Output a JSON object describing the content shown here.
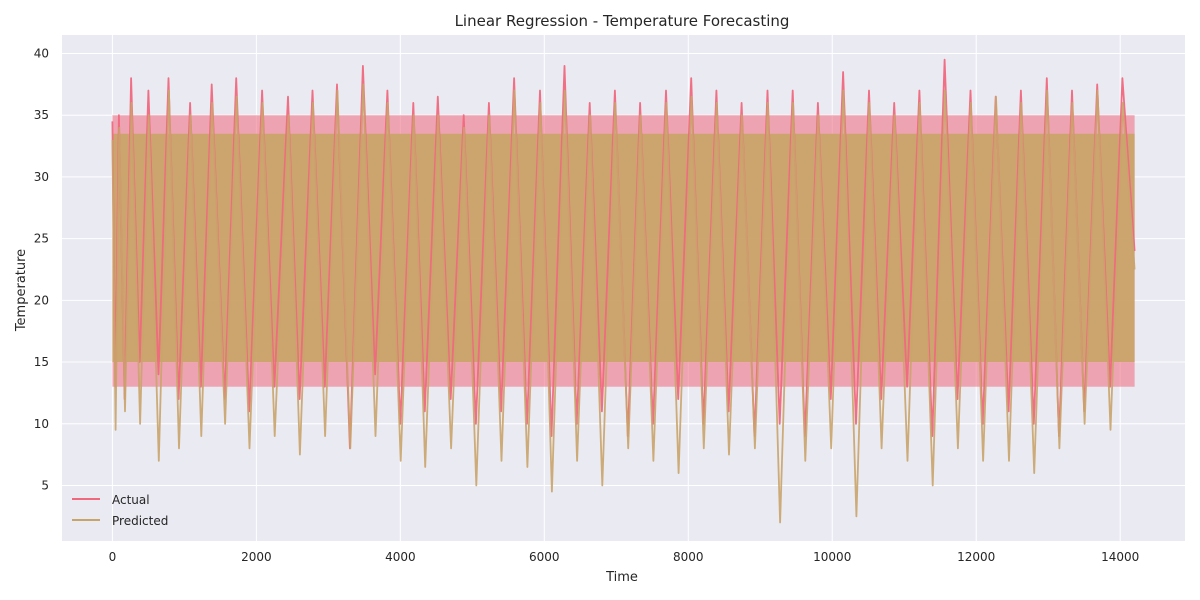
{
  "chart_data": {
    "type": "line",
    "title": "Linear Regression - Temperature Forecasting",
    "xlabel": "Time",
    "ylabel": "Temperature",
    "xlim": [
      -700,
      14900
    ],
    "ylim": [
      0.5,
      41.5
    ],
    "xticks": [
      0,
      2000,
      4000,
      6000,
      8000,
      10000,
      12000,
      14000
    ],
    "yticks": [
      5,
      10,
      15,
      20,
      25,
      30,
      35,
      40
    ],
    "grid": true,
    "legend_position": "lower-left",
    "series": [
      {
        "name": "Actual",
        "color": "#f0687e",
        "x": [
          0,
          40,
          90,
          170,
          260,
          380,
          500,
          640,
          780,
          920,
          1080,
          1230,
          1380,
          1560,
          1720,
          1900,
          2080,
          2250,
          2440,
          2600,
          2780,
          2950,
          3120,
          3300,
          3480,
          3650,
          3820,
          4000,
          4180,
          4340,
          4520,
          4700,
          4880,
          5050,
          5230,
          5400,
          5580,
          5760,
          5940,
          6100,
          6280,
          6450,
          6630,
          6800,
          6980,
          7160,
          7330,
          7510,
          7690,
          7860,
          8040,
          8210,
          8390,
          8560,
          8740,
          8920,
          9100,
          9270,
          9450,
          9620,
          9800,
          9980,
          10150,
          10330,
          10510,
          10680,
          10860,
          11040,
          11210,
          11390,
          11560,
          11740,
          11920,
          12090,
          12270,
          12450,
          12620,
          12800,
          12980,
          13150,
          13330,
          13500,
          13680,
          13860,
          14030,
          14200
        ],
        "y": [
          34.5,
          13,
          35,
          12,
          38,
          15,
          37,
          14,
          38,
          12,
          36,
          13,
          37.5,
          12,
          38,
          11,
          37,
          13,
          36.5,
          12,
          37,
          13,
          37.5,
          8,
          39,
          14,
          37,
          10,
          36,
          11,
          36.5,
          12,
          35,
          10,
          36,
          11,
          38,
          10,
          37,
          9,
          39,
          10,
          36,
          11,
          37,
          9,
          36,
          10,
          37,
          12,
          38,
          10,
          37,
          11,
          36,
          9,
          37,
          10,
          37,
          9,
          36,
          12,
          38.5,
          10,
          37,
          12,
          36,
          13,
          37,
          9,
          39.5,
          12,
          37,
          10,
          36.5,
          11,
          37,
          10,
          38,
          9,
          37,
          11,
          37.5,
          13,
          38,
          24
        ]
      },
      {
        "name": "Predicted",
        "color": "#c9a46a",
        "x": [
          0,
          45,
          95,
          175,
          265,
          385,
          505,
          645,
          785,
          925,
          1085,
          1235,
          1385,
          1565,
          1725,
          1905,
          2085,
          2255,
          2445,
          2605,
          2785,
          2955,
          3125,
          3305,
          3485,
          3655,
          3825,
          4005,
          4185,
          4345,
          4525,
          4705,
          4885,
          5055,
          5235,
          5405,
          5585,
          5765,
          5945,
          6105,
          6285,
          6455,
          6635,
          6805,
          6985,
          7165,
          7335,
          7515,
          7695,
          7865,
          8045,
          8215,
          8395,
          8565,
          8745,
          8925,
          9105,
          9275,
          9455,
          9625,
          9805,
          9985,
          10155,
          10335,
          10515,
          10685,
          10865,
          11045,
          11215,
          11395,
          11565,
          11745,
          11925,
          12095,
          12275,
          12455,
          12625,
          12805,
          12985,
          13155,
          13335,
          13505,
          13685,
          13865,
          14035,
          14200
        ],
        "y": [
          33,
          9.5,
          34,
          11,
          36,
          10,
          35,
          7,
          37,
          8,
          35,
          9,
          36,
          10,
          36.5,
          8,
          36,
          9,
          35,
          7.5,
          36,
          9,
          37,
          8,
          37.5,
          9,
          36,
          7,
          35,
          6.5,
          35,
          8,
          34,
          5,
          35,
          7,
          37,
          6.5,
          36,
          4.5,
          37,
          7,
          35,
          5,
          36,
          8,
          35,
          7,
          36,
          6,
          36.5,
          8,
          36,
          7.5,
          35,
          8,
          36,
          2,
          36,
          7,
          35,
          8,
          37,
          2.5,
          36,
          8,
          35,
          7,
          36,
          5,
          37,
          8,
          36,
          7,
          36.5,
          7,
          36,
          6,
          37,
          8,
          36,
          10,
          37,
          9.5,
          36,
          22.5
        ]
      }
    ]
  }
}
